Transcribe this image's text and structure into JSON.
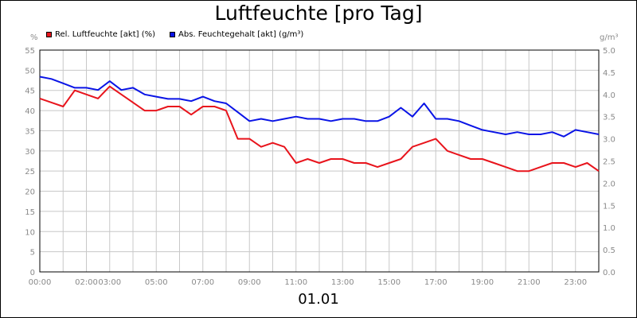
{
  "chart_data": {
    "type": "line",
    "title": "Luftfeuchte [pro Tag]",
    "footer_label": "01.01",
    "y_left_unit": "%",
    "y_right_unit": "g/m³",
    "ylim_left": [
      0,
      55
    ],
    "ylim_right": [
      0,
      5
    ],
    "y_left_ticks": [
      "0",
      "5",
      "10",
      "15",
      "20",
      "25",
      "30",
      "35",
      "40",
      "45",
      "50",
      "55"
    ],
    "y_right_ticks": [
      "0.0",
      "0.5",
      "1.0",
      "1.5",
      "2.0",
      "2.5",
      "3.0",
      "3.5",
      "4.0",
      "4.5",
      "5.0"
    ],
    "x_tick_labels": [
      "00:00",
      "02:00",
      "03:00",
      "05:00",
      "07:00",
      "09:00",
      "11:00",
      "13:00",
      "15:00",
      "17:00",
      "19:00",
      "21:00",
      "23:00"
    ],
    "x_tick_hours": [
      0,
      2,
      3,
      5,
      7,
      9,
      11,
      13,
      15,
      17,
      19,
      21,
      23
    ],
    "x_hours": [
      0,
      0.5,
      1,
      1.5,
      2,
      2.5,
      3,
      3.5,
      4,
      4.5,
      5,
      5.5,
      6,
      6.5,
      7,
      7.5,
      8,
      8.5,
      9,
      9.5,
      10,
      10.5,
      11,
      11.5,
      12,
      12.5,
      13,
      13.5,
      14,
      14.5,
      15,
      15.5,
      16,
      16.5,
      17,
      17.5,
      18,
      18.5,
      19,
      19.5,
      20,
      20.5,
      21,
      21.5,
      22,
      22.5,
      23,
      23.5,
      24
    ],
    "grid": true,
    "legend_position": "top-left",
    "series": [
      {
        "name": "Rel. Luftfeuchte [akt] (%)",
        "axis": "left",
        "color": "#e8141c",
        "values": [
          43,
          42,
          41,
          45,
          44,
          43,
          46,
          44,
          42,
          40,
          40,
          41,
          41,
          39,
          41,
          41,
          40,
          33,
          33,
          31,
          32,
          31,
          27,
          28,
          27,
          28,
          28,
          27,
          27,
          26,
          27,
          28,
          31,
          32,
          33,
          30,
          29,
          28,
          28,
          27,
          26,
          25,
          25,
          26,
          27,
          27,
          26,
          27,
          25
        ]
      },
      {
        "name": "Abs. Feuchtegehalt [akt] (g/m³)",
        "axis": "right",
        "color": "#0a14e6",
        "values": [
          4.4,
          4.35,
          4.25,
          4.15,
          4.15,
          4.1,
          4.3,
          4.1,
          4.15,
          4.0,
          3.95,
          3.9,
          3.9,
          3.85,
          3.95,
          3.85,
          3.8,
          3.6,
          3.4,
          3.45,
          3.4,
          3.45,
          3.5,
          3.45,
          3.45,
          3.4,
          3.45,
          3.45,
          3.4,
          3.4,
          3.5,
          3.7,
          3.5,
          3.8,
          3.45,
          3.45,
          3.4,
          3.3,
          3.2,
          3.15,
          3.1,
          3.15,
          3.1,
          3.1,
          3.15,
          3.05,
          3.2,
          3.15,
          3.1
        ]
      }
    ]
  }
}
